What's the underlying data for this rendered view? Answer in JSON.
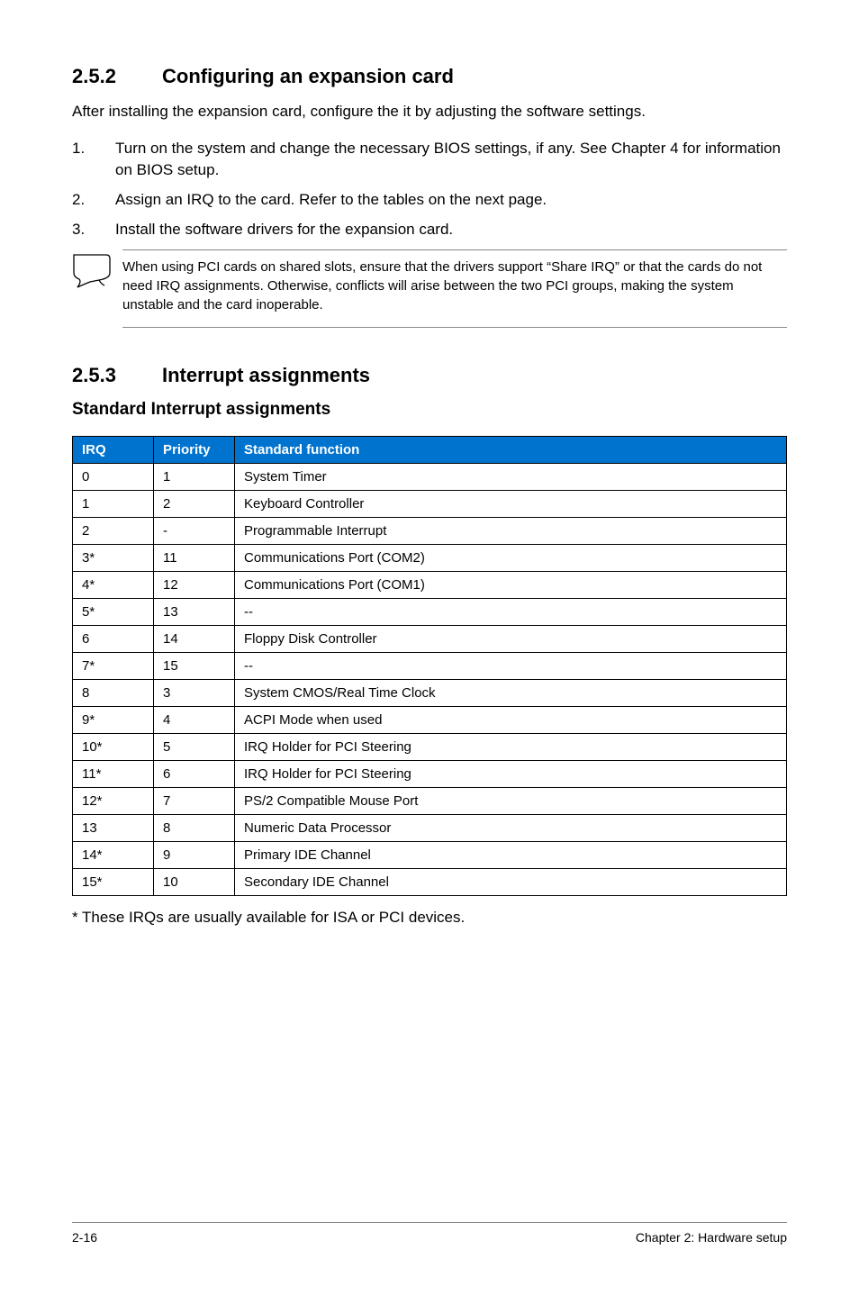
{
  "section1": {
    "number": "2.5.2",
    "title": "Configuring an expansion card",
    "intro": "After installing the expansion card, configure the it by adjusting the software settings.",
    "steps": [
      "Turn on the system and change the necessary BIOS settings, if any. See Chapter 4 for information on BIOS setup.",
      "Assign an IRQ to the card. Refer to the tables on the next page.",
      "Install the software drivers for the expansion card."
    ],
    "note": "When using PCI cards on shared slots, ensure that the drivers support “Share IRQ” or that the cards do not need IRQ assignments. Otherwise, conflicts will arise between the two PCI groups, making the system unstable and the card inoperable."
  },
  "section2": {
    "number": "2.5.3",
    "title": "Interrupt assignments",
    "subheading": "Standard Interrupt assignments"
  },
  "table": {
    "header_bg": "#0073cf",
    "header_fg": "#ffffff",
    "columns": [
      "IRQ",
      "Priority",
      "Standard function"
    ],
    "rows": [
      [
        "0",
        "1",
        "System Timer"
      ],
      [
        "1",
        "2",
        "Keyboard Controller"
      ],
      [
        "2",
        "-",
        "Programmable Interrupt"
      ],
      [
        "3*",
        "11",
        "Communications Port (COM2)"
      ],
      [
        "4*",
        "12",
        "Communications Port (COM1)"
      ],
      [
        "5*",
        "13",
        "--"
      ],
      [
        "6",
        "14",
        "Floppy Disk Controller"
      ],
      [
        "7*",
        "15",
        "--"
      ],
      [
        "8",
        "3",
        "System CMOS/Real Time Clock"
      ],
      [
        "9*",
        "4",
        "ACPI Mode when used"
      ],
      [
        "10*",
        "5",
        "IRQ Holder for PCI Steering"
      ],
      [
        "11*",
        "6",
        "IRQ Holder for PCI Steering"
      ],
      [
        "12*",
        "7",
        "PS/2 Compatible Mouse Port"
      ],
      [
        "13",
        "8",
        "Numeric Data Processor"
      ],
      [
        "14*",
        "9",
        "Primary IDE Channel"
      ],
      [
        "15*",
        "10",
        "Secondary IDE Channel"
      ]
    ],
    "footnote": "* These IRQs are usually available for ISA or PCI devices."
  },
  "footer": {
    "left": "2-16",
    "right": "Chapter 2:  Hardware setup"
  }
}
